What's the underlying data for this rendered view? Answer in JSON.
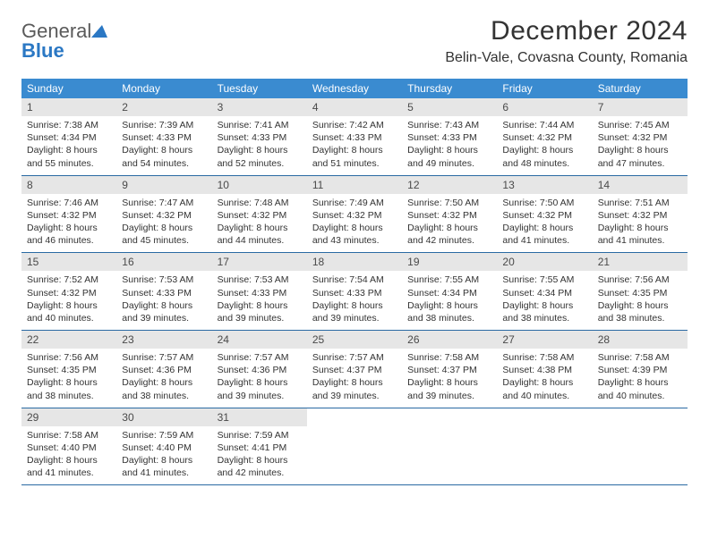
{
  "logo": {
    "word1": "General",
    "word2": "Blue"
  },
  "header": {
    "month_title": "December 2024",
    "location": "Belin-Vale, Covasna County, Romania"
  },
  "colors": {
    "header_bar": "#3a8bd0",
    "header_text": "#ffffff",
    "daynum_bg": "#e6e6e6",
    "week_divider": "#2a6aa3",
    "body_text": "#333333",
    "logo_gray": "#5a5a5a",
    "logo_blue": "#2b78c4",
    "background": "#ffffff"
  },
  "typography": {
    "title_fontsize": 30,
    "location_fontsize": 16,
    "weekday_fontsize": 12,
    "daynum_fontsize": 12,
    "cell_fontsize": 10.5
  },
  "weekday_labels": [
    "Sunday",
    "Monday",
    "Tuesday",
    "Wednesday",
    "Thursday",
    "Friday",
    "Saturday"
  ],
  "weeks": [
    [
      {
        "n": "1",
        "sr": "7:38 AM",
        "ss": "4:34 PM",
        "dl": "8 hours and 55 minutes."
      },
      {
        "n": "2",
        "sr": "7:39 AM",
        "ss": "4:33 PM",
        "dl": "8 hours and 54 minutes."
      },
      {
        "n": "3",
        "sr": "7:41 AM",
        "ss": "4:33 PM",
        "dl": "8 hours and 52 minutes."
      },
      {
        "n": "4",
        "sr": "7:42 AM",
        "ss": "4:33 PM",
        "dl": "8 hours and 51 minutes."
      },
      {
        "n": "5",
        "sr": "7:43 AM",
        "ss": "4:33 PM",
        "dl": "8 hours and 49 minutes."
      },
      {
        "n": "6",
        "sr": "7:44 AM",
        "ss": "4:32 PM",
        "dl": "8 hours and 48 minutes."
      },
      {
        "n": "7",
        "sr": "7:45 AM",
        "ss": "4:32 PM",
        "dl": "8 hours and 47 minutes."
      }
    ],
    [
      {
        "n": "8",
        "sr": "7:46 AM",
        "ss": "4:32 PM",
        "dl": "8 hours and 46 minutes."
      },
      {
        "n": "9",
        "sr": "7:47 AM",
        "ss": "4:32 PM",
        "dl": "8 hours and 45 minutes."
      },
      {
        "n": "10",
        "sr": "7:48 AM",
        "ss": "4:32 PM",
        "dl": "8 hours and 44 minutes."
      },
      {
        "n": "11",
        "sr": "7:49 AM",
        "ss": "4:32 PM",
        "dl": "8 hours and 43 minutes."
      },
      {
        "n": "12",
        "sr": "7:50 AM",
        "ss": "4:32 PM",
        "dl": "8 hours and 42 minutes."
      },
      {
        "n": "13",
        "sr": "7:50 AM",
        "ss": "4:32 PM",
        "dl": "8 hours and 41 minutes."
      },
      {
        "n": "14",
        "sr": "7:51 AM",
        "ss": "4:32 PM",
        "dl": "8 hours and 41 minutes."
      }
    ],
    [
      {
        "n": "15",
        "sr": "7:52 AM",
        "ss": "4:32 PM",
        "dl": "8 hours and 40 minutes."
      },
      {
        "n": "16",
        "sr": "7:53 AM",
        "ss": "4:33 PM",
        "dl": "8 hours and 39 minutes."
      },
      {
        "n": "17",
        "sr": "7:53 AM",
        "ss": "4:33 PM",
        "dl": "8 hours and 39 minutes."
      },
      {
        "n": "18",
        "sr": "7:54 AM",
        "ss": "4:33 PM",
        "dl": "8 hours and 39 minutes."
      },
      {
        "n": "19",
        "sr": "7:55 AM",
        "ss": "4:34 PM",
        "dl": "8 hours and 38 minutes."
      },
      {
        "n": "20",
        "sr": "7:55 AM",
        "ss": "4:34 PM",
        "dl": "8 hours and 38 minutes."
      },
      {
        "n": "21",
        "sr": "7:56 AM",
        "ss": "4:35 PM",
        "dl": "8 hours and 38 minutes."
      }
    ],
    [
      {
        "n": "22",
        "sr": "7:56 AM",
        "ss": "4:35 PM",
        "dl": "8 hours and 38 minutes."
      },
      {
        "n": "23",
        "sr": "7:57 AM",
        "ss": "4:36 PM",
        "dl": "8 hours and 38 minutes."
      },
      {
        "n": "24",
        "sr": "7:57 AM",
        "ss": "4:36 PM",
        "dl": "8 hours and 39 minutes."
      },
      {
        "n": "25",
        "sr": "7:57 AM",
        "ss": "4:37 PM",
        "dl": "8 hours and 39 minutes."
      },
      {
        "n": "26",
        "sr": "7:58 AM",
        "ss": "4:37 PM",
        "dl": "8 hours and 39 minutes."
      },
      {
        "n": "27",
        "sr": "7:58 AM",
        "ss": "4:38 PM",
        "dl": "8 hours and 40 minutes."
      },
      {
        "n": "28",
        "sr": "7:58 AM",
        "ss": "4:39 PM",
        "dl": "8 hours and 40 minutes."
      }
    ],
    [
      {
        "n": "29",
        "sr": "7:58 AM",
        "ss": "4:40 PM",
        "dl": "8 hours and 41 minutes."
      },
      {
        "n": "30",
        "sr": "7:59 AM",
        "ss": "4:40 PM",
        "dl": "8 hours and 41 minutes."
      },
      {
        "n": "31",
        "sr": "7:59 AM",
        "ss": "4:41 PM",
        "dl": "8 hours and 42 minutes."
      },
      null,
      null,
      null,
      null
    ]
  ],
  "labels": {
    "sunrise_prefix": "Sunrise: ",
    "sunset_prefix": "Sunset: ",
    "daylight_prefix": "Daylight: "
  }
}
